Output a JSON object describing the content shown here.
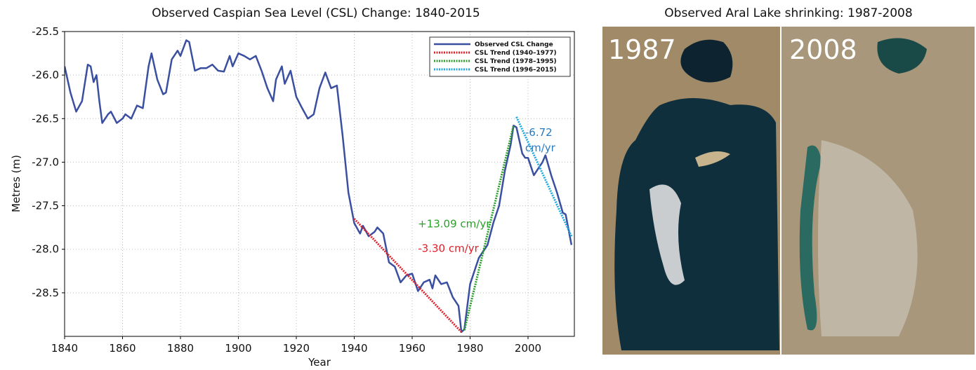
{
  "chart_data": {
    "type": "line",
    "title": "Observed Caspian Sea Level (CSL) Change: 1840-2015",
    "x_label": "Year",
    "y_label": "Metres (m)",
    "xlim": [
      1840,
      2016
    ],
    "xticks": [
      1840,
      1860,
      1880,
      1900,
      1920,
      1940,
      1960,
      1980,
      2000
    ],
    "ylim": [
      -29.0,
      -25.5
    ],
    "yticks": [
      -25.5,
      {
        "value": -26,
        "label": "-26.0"
      },
      -26.5,
      {
        "value": -27,
        "label": "-27.0"
      },
      -27.5,
      {
        "value": -28,
        "label": "-28.0"
      },
      -28.5
    ],
    "grid": true,
    "legend": "upper right",
    "series": [
      {
        "name": "Observed CSL Change",
        "color": "#3a4fa0",
        "style": "solid",
        "x": [
          1840,
          1842,
          1844,
          1846,
          1848,
          1849,
          1850,
          1851,
          1852,
          1853,
          1855,
          1856,
          1858,
          1860,
          1861,
          1863,
          1865,
          1867,
          1869,
          1870,
          1872,
          1874,
          1875,
          1877,
          1879,
          1880,
          1882,
          1883,
          1885,
          1887,
          1889,
          1891,
          1893,
          1895,
          1897,
          1898,
          1900,
          1902,
          1904,
          1906,
          1908,
          1910,
          1912,
          1913,
          1915,
          1916,
          1918,
          1920,
          1922,
          1924,
          1926,
          1928,
          1930,
          1932,
          1934,
          1936,
          1938,
          1940,
          1942,
          1943,
          1945,
          1947,
          1948,
          1950,
          1952,
          1954,
          1956,
          1958,
          1960,
          1962,
          1964,
          1966,
          1967,
          1968,
          1970,
          1972,
          1974,
          1976,
          1977,
          1978,
          1980,
          1983,
          1986,
          1988,
          1990,
          1992,
          1994,
          1995,
          1996,
          1998,
          1999,
          2000,
          2002,
          2004,
          2005,
          2006,
          2008,
          2010,
          2012,
          2013,
          2015
        ],
        "values": [
          -25.9,
          -26.2,
          -26.42,
          -26.3,
          -25.88,
          -25.9,
          -26.08,
          -26.0,
          -26.3,
          -26.55,
          -26.45,
          -26.42,
          -26.55,
          -26.5,
          -26.45,
          -26.5,
          -26.35,
          -26.38,
          -25.9,
          -25.75,
          -26.05,
          -26.22,
          -26.2,
          -25.82,
          -25.72,
          -25.78,
          -25.6,
          -25.62,
          -25.95,
          -25.92,
          -25.92,
          -25.88,
          -25.95,
          -25.96,
          -25.78,
          -25.9,
          -25.75,
          -25.78,
          -25.82,
          -25.78,
          -25.95,
          -26.15,
          -26.3,
          -26.05,
          -25.9,
          -26.1,
          -25.95,
          -26.25,
          -26.38,
          -26.5,
          -26.45,
          -26.15,
          -25.97,
          -26.15,
          -26.12,
          -26.7,
          -27.35,
          -27.7,
          -27.82,
          -27.73,
          -27.85,
          -27.8,
          -27.75,
          -27.82,
          -28.15,
          -28.2,
          -28.38,
          -28.3,
          -28.28,
          -28.48,
          -28.38,
          -28.35,
          -28.45,
          -28.3,
          -28.4,
          -28.38,
          -28.55,
          -28.65,
          -28.95,
          -28.92,
          -28.4,
          -28.1,
          -27.95,
          -27.7,
          -27.5,
          -27.1,
          -26.8,
          -26.58,
          -26.6,
          -26.9,
          -26.95,
          -26.95,
          -27.15,
          -27.05,
          -27.0,
          -26.92,
          -27.15,
          -27.35,
          -27.58,
          -27.6,
          -27.95
        ]
      },
      {
        "name": "CSL Trend (1940–1977)",
        "color": "#e0202a",
        "style": "dotted",
        "x": [
          1940,
          1977
        ],
        "values": [
          -27.65,
          -28.95
        ]
      },
      {
        "name": "CSL Trend (1978–1995)",
        "color": "#2aa02a",
        "style": "dotted",
        "x": [
          1978,
          1995
        ],
        "values": [
          -28.93,
          -26.58
        ]
      },
      {
        "name": "CSL Trend (1996–2015)",
        "color": "#20a8e0",
        "style": "dotted",
        "x": [
          1996,
          2015
        ],
        "values": [
          -26.48,
          -27.85
        ]
      }
    ],
    "annotations": [
      {
        "lines": [
          "-3.30 cm/yr"
        ],
        "color": "#e0202a"
      },
      {
        "lines": [
          "+13.09 cm/yr"
        ],
        "color": "#2aa02a"
      },
      {
        "lines": [
          "-6.72",
          "cm/yr"
        ],
        "color": "#2a7ac0"
      }
    ]
  },
  "image_panel": {
    "title": "Observed Aral Lake shrinking: 1987-2008",
    "labels": [
      "1987",
      "2008"
    ]
  }
}
